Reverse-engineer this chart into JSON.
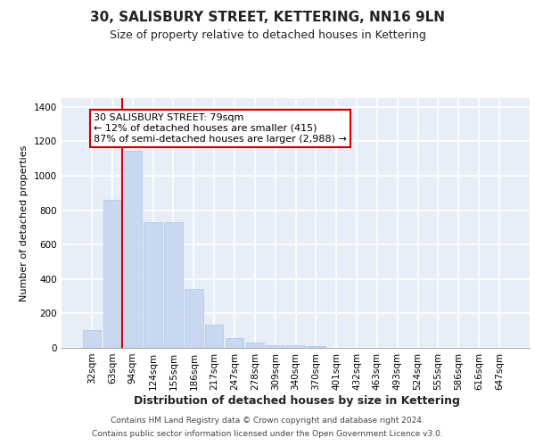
{
  "title": "30, SALISBURY STREET, KETTERING, NN16 9LN",
  "subtitle": "Size of property relative to detached houses in Kettering",
  "xlabel": "Distribution of detached houses by size in Kettering",
  "ylabel": "Number of detached properties",
  "categories": [
    "32sqm",
    "63sqm",
    "94sqm",
    "124sqm",
    "155sqm",
    "186sqm",
    "217sqm",
    "247sqm",
    "278sqm",
    "309sqm",
    "340sqm",
    "370sqm",
    "401sqm",
    "432sqm",
    "463sqm",
    "493sqm",
    "524sqm",
    "555sqm",
    "586sqm",
    "616sqm",
    "647sqm"
  ],
  "values": [
    103,
    862,
    1143,
    730,
    730,
    340,
    135,
    57,
    30,
    18,
    18,
    10,
    0,
    0,
    0,
    0,
    0,
    0,
    0,
    0,
    0
  ],
  "bar_color": "#c8d8f0",
  "bar_edge_color": "#b0c4e0",
  "vline_color": "#cc0000",
  "annotation_text": "30 SALISBURY STREET: 79sqm\n← 12% of detached houses are smaller (415)\n87% of semi-detached houses are larger (2,988) →",
  "annotation_box_facecolor": "#ffffff",
  "annotation_box_edgecolor": "#cc0000",
  "ylim": [
    0,
    1450
  ],
  "yticks": [
    0,
    200,
    400,
    600,
    800,
    1000,
    1200,
    1400
  ],
  "footer_line1": "Contains HM Land Registry data © Crown copyright and database right 2024.",
  "footer_line2": "Contains public sector information licensed under the Open Government Licence v3.0.",
  "fig_bg_color": "#ffffff",
  "plot_bg_color": "#e8eef8",
  "grid_color": "#ffffff",
  "title_fontsize": 11,
  "subtitle_fontsize": 9,
  "xlabel_fontsize": 9,
  "ylabel_fontsize": 8,
  "tick_fontsize": 7.5,
  "footer_fontsize": 6.5,
  "annotation_fontsize": 8
}
